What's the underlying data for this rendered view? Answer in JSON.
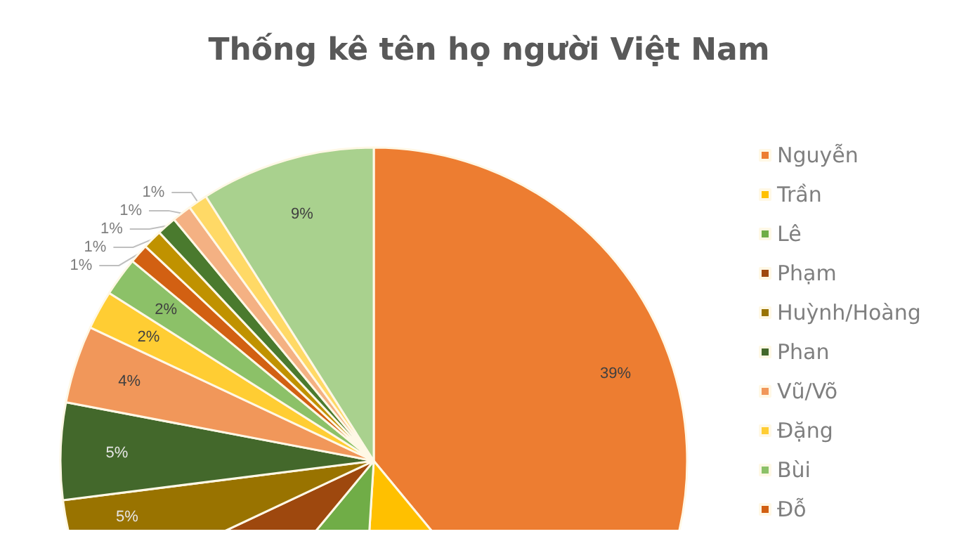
{
  "chart_data": {
    "type": "pie",
    "title": "Thống kê tên họ người Việt Nam",
    "categories": [
      "Nguyễn",
      "Trần",
      "Lê",
      "Phạm",
      "Huỳnh/Hoàng",
      "Phan",
      "Vũ/Võ",
      "Đặng",
      "Bùi",
      "Đỗ",
      null,
      null,
      null,
      null,
      null
    ],
    "values": [
      39,
      12,
      10,
      7,
      5,
      5,
      4,
      2,
      2,
      1,
      1,
      1,
      1,
      1,
      9
    ],
    "colors": [
      "#ed7d31",
      "#ffc000",
      "#70ad47",
      "#9e480e",
      "#997300",
      "#43682b",
      "#f1975a",
      "#ffcd33",
      "#8cc168",
      "#d26012",
      "#c09200",
      "#4a7a2e",
      "#f4b183",
      "#ffd966",
      "#a9d18e"
    ],
    "value_labels": [
      "39%",
      null,
      null,
      null,
      "5%",
      "5%",
      "4%",
      "2%",
      "2%",
      "1%",
      "1%",
      "1%",
      "1%",
      "1%",
      "9%"
    ],
    "legend": "right"
  }
}
